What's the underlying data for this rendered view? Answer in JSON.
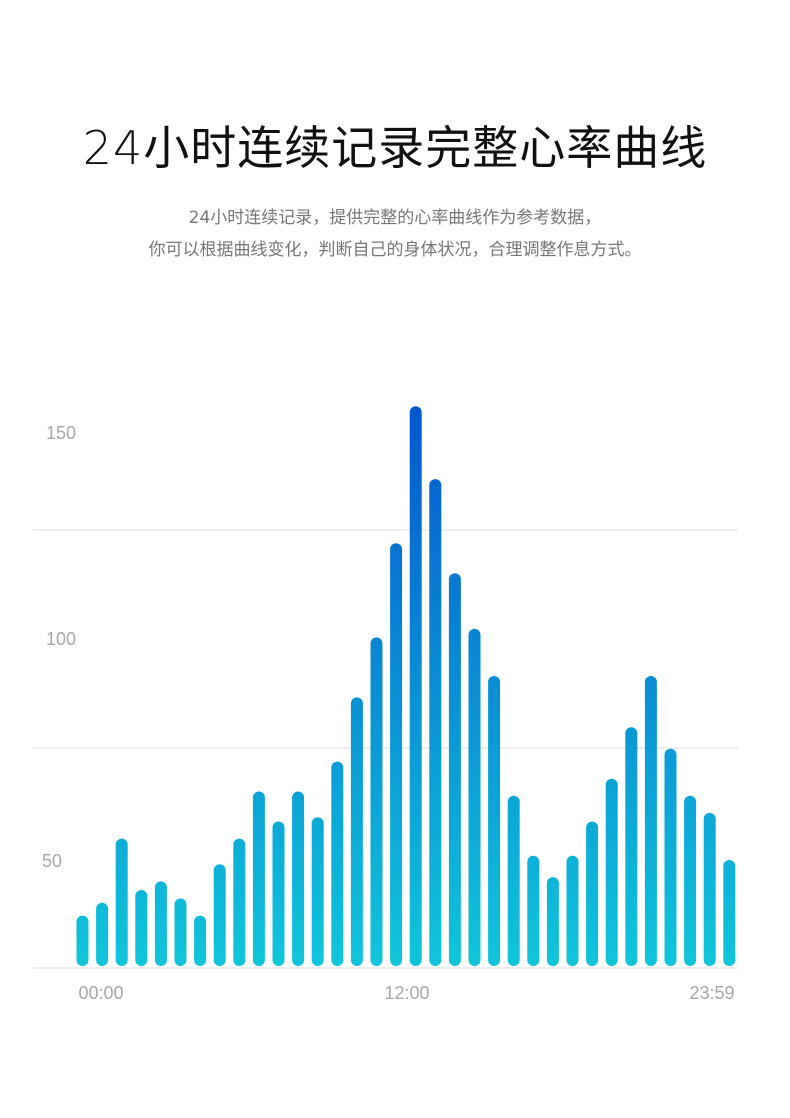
{
  "header": {
    "title": "24小时连续记录完整心率曲线",
    "subtitle_lines": [
      "24小时连续记录，提供完整的心率曲线作为参考数据，",
      "你可以根据曲线变化，判断自己的身体状况，合理调整作息方式。"
    ]
  },
  "chart_data": {
    "type": "bar",
    "title": "24小时连续记录完整心率曲线",
    "xlabel": "",
    "ylabel": "",
    "x_tick_labels": [
      "00:00",
      "12:00",
      "23:59"
    ],
    "y_tick_labels": [
      "150",
      "100",
      "50"
    ],
    "y_ticks": [
      150,
      100,
      50
    ],
    "ylim": [
      25,
      160
    ],
    "grid": true,
    "values": [
      37,
      40,
      55,
      43,
      45,
      41,
      37,
      49,
      55,
      66,
      59,
      66,
      60,
      73,
      88,
      102,
      124,
      156,
      139,
      117,
      104,
      93,
      65,
      51,
      46,
      51,
      59,
      69,
      81,
      93,
      76,
      65,
      61,
      50
    ],
    "colors": {
      "top": "#0457cf",
      "bottom": "#10c6da",
      "grid": "#dcdcdc",
      "tick": "#a8a8a8"
    }
  }
}
